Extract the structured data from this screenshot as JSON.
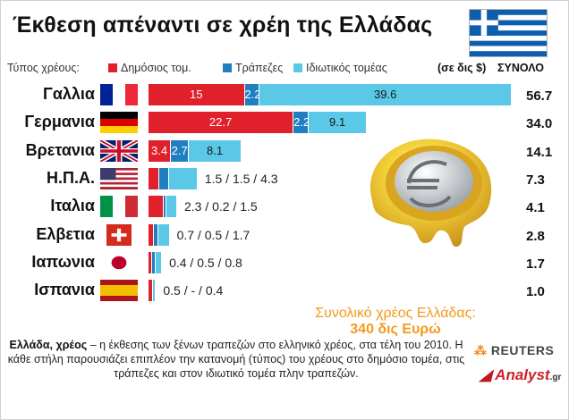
{
  "title": "Έκθεση απέναντι σε χρέη της Ελλάδας",
  "legend": {
    "prefix": "Τύπος χρέους:",
    "public": "Δημόσιος τομ.",
    "banks": "Τράπεζες",
    "private": "Ιδιωτικός τομέας"
  },
  "units": "(σε δις $)",
  "total_header": "ΣΥΝΟΛΟ",
  "colors": {
    "public": "#e0202a",
    "banks": "#1f7fc0",
    "private": "#5ac8e6"
  },
  "chart_data": {
    "type": "bar",
    "stacked": true,
    "orientation": "horizontal",
    "categories": [
      "Γαλλια",
      "Γερμανια",
      "Βρετανια",
      "Η.Π.Α.",
      "Ιταλια",
      "Ελβετια",
      "Ιαπωνια",
      "Ισπανια"
    ],
    "series": [
      {
        "name": "Δημόσιος τομ.",
        "values": [
          15,
          22.7,
          3.4,
          1.5,
          2.3,
          0.7,
          0.4,
          0.5
        ]
      },
      {
        "name": "Τράπεζες",
        "values": [
          2.2,
          2.2,
          2.7,
          1.5,
          0.2,
          0.5,
          0.5,
          0
        ]
      },
      {
        "name": "Ιδιωτικός τομέας",
        "values": [
          39.6,
          9.1,
          8.1,
          4.3,
          1.5,
          1.7,
          0.8,
          0.4
        ]
      }
    ],
    "totals": [
      "56.7",
      "34.0",
      "14.1",
      "7.3",
      "4.1",
      "2.8",
      "1.7",
      "1.0"
    ],
    "outside_labels": [
      "",
      "",
      "",
      "1.5 / 1.5 / 4.3",
      "2.3 / 0.2 / 1.5",
      "0.7 / 0.5 / 1.7",
      "0.4 / 0.5 / 0.8",
      "0.5 / - / 0.4"
    ],
    "inside_labels": [
      [
        "15",
        "2.2",
        "39.6"
      ],
      [
        "22.7",
        "2.2",
        "9.1"
      ],
      [
        "3.4",
        "2.7",
        "8.1"
      ],
      [
        "",
        "",
        ""
      ],
      [
        "",
        "",
        ""
      ],
      [
        "",
        "",
        ""
      ],
      [
        "",
        "",
        ""
      ],
      [
        "",
        "",
        ""
      ]
    ]
  },
  "debt_label": "Συνολικό χρέος Ελλάδας:",
  "debt_value": "340 δις Ευρώ",
  "note_bold": "Ελλάδα, χρέος",
  "note_text": " – η έκθεσης των ξένων τραπεζών στο ελληνικό χρέος, στα τέλη του 2010. Η κάθε στήλη παρουσιάζει επιπλέον την κατανομή (τύπος) του χρέους στο δημόσιο τομέα, στις τράπεζες και στον ιδιωτικό τομέα πλην τραπεζών.",
  "credits": {
    "reuters": "REUTERS",
    "analyst": "Analyst",
    "analyst_suffix": ".gr"
  }
}
